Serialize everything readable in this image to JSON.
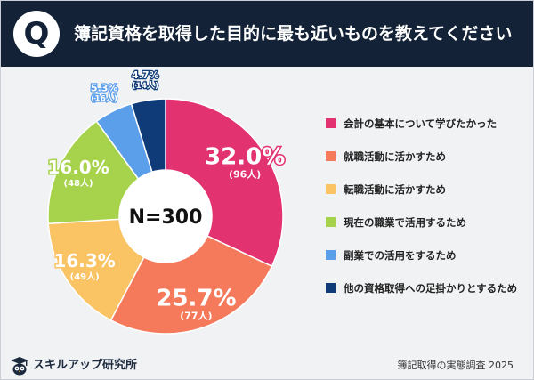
{
  "header": {
    "badge": "Q",
    "title": "簿記資格を取得した目的に最も近いものを教えてください"
  },
  "chart_data": {
    "type": "pie",
    "variant": "donut",
    "center_label": "N=300",
    "categories": [
      "会計の基本について学びたかった",
      "就職活動に活かすため",
      "転職活動に活かすため",
      "現在の職業で活用するため",
      "副業での活用をするため",
      "他の資格取得への足掛かりとするため"
    ],
    "values": [
      32.0,
      25.7,
      16.3,
      16.0,
      5.3,
      4.7
    ],
    "percent_labels": [
      "32.0%",
      "25.7%",
      "16.3%",
      "16.0%",
      "5.3%",
      "4.7%"
    ],
    "count_labels": [
      "(96人)",
      "(77人)",
      "(49人)",
      "(48人)",
      "(16人)",
      "(14人)"
    ],
    "colors": [
      "#e2326f",
      "#f47a5b",
      "#fac363",
      "#a7d24b",
      "#5b9eea",
      "#0f3b78"
    ],
    "legend_position": "right"
  },
  "footer": {
    "logo_text": "スキルアップ研究所",
    "source": "簿記取得の実態調査 2025"
  }
}
